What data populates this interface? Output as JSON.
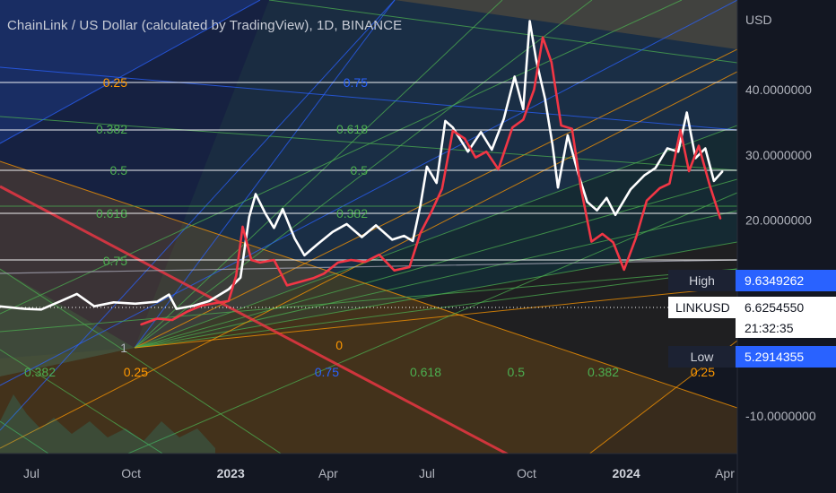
{
  "header": {
    "title": "ChainLink / US Dollar (calculated by TradingView), 1D, BINANCE"
  },
  "price_axis": {
    "unit_label": "USD",
    "ticks": [
      {
        "value": 40,
        "label": "40.0000000"
      },
      {
        "value": 30,
        "label": "30.0000000"
      },
      {
        "value": 20,
        "label": "20.0000000"
      },
      {
        "value": -10,
        "label": "-10.0000000"
      }
    ]
  },
  "time_axis": {
    "ticks": [
      {
        "date": "2022-07-01",
        "label": "Jul",
        "bold": false
      },
      {
        "date": "2022-10-01",
        "label": "Oct",
        "bold": false
      },
      {
        "date": "2023-01-01",
        "label": "2023",
        "bold": true
      },
      {
        "date": "2023-04-01",
        "label": "Apr",
        "bold": false
      },
      {
        "date": "2023-07-01",
        "label": "Jul",
        "bold": false
      },
      {
        "date": "2023-10-01",
        "label": "Oct",
        "bold": false
      },
      {
        "date": "2024-01-01",
        "label": "2024",
        "bold": true
      },
      {
        "date": "2024-04-01",
        "label": "Apr",
        "bold": false
      }
    ]
  },
  "fib_levels": {
    "left": [
      "0.25",
      "0.382",
      "0.5",
      "0.618",
      "0.75",
      "1"
    ],
    "middle": [
      "0.75",
      "0.618",
      "0.5",
      "0.382"
    ],
    "bottom": [
      "0.382",
      "0.25",
      "0.75",
      "0.618",
      "0.5",
      "0.382",
      "0.25"
    ],
    "zero": "0"
  },
  "readouts": {
    "high": {
      "label": "High",
      "value": "9.6349262"
    },
    "symbol": {
      "label": "LINKUSD",
      "value": "6.6254550",
      "countdown": "21:32:35"
    },
    "low": {
      "label": "Low",
      "value": "5.2914355"
    }
  },
  "colors": {
    "background": "#131722",
    "white_series": "#ffffff",
    "red_series": "#f23645",
    "high_low_badge": "#2962ff",
    "symbol_badge": "#ffffff",
    "fan_orange": "#ff9800",
    "fan_green": "#4caf50",
    "fan_blue": "#2962ff"
  },
  "chart_data": {
    "type": "line",
    "title": "ChainLink / US Dollar (calculated by TradingView), 1D, BINANCE",
    "xlabel": "",
    "ylabel": "USD",
    "ylim": [
      -14,
      51
    ],
    "grid": false,
    "series": [
      {
        "name": "",
        "color": "#ffffff",
        "points": [
          [
            "2022-06-01",
            6.8
          ],
          [
            "2022-06-25",
            6.4
          ],
          [
            "2022-07-10",
            6.3
          ],
          [
            "2022-07-28",
            7.6
          ],
          [
            "2022-08-12",
            8.7
          ],
          [
            "2022-08-28",
            6.8
          ],
          [
            "2022-09-15",
            7.4
          ],
          [
            "2022-10-05",
            7.2
          ],
          [
            "2022-10-25",
            7.5
          ],
          [
            "2022-11-05",
            8.6
          ],
          [
            "2022-11-12",
            6.4
          ],
          [
            "2022-11-28",
            6.9
          ],
          [
            "2022-12-12",
            7.6
          ],
          [
            "2022-12-30",
            9.4
          ],
          [
            "2023-01-10",
            11.2
          ],
          [
            "2023-01-18",
            20.5
          ],
          [
            "2023-01-24",
            24.0
          ],
          [
            "2023-02-02",
            21.0
          ],
          [
            "2023-02-10",
            18.8
          ],
          [
            "2023-02-18",
            21.7
          ],
          [
            "2023-03-01",
            17.2
          ],
          [
            "2023-03-10",
            14.6
          ],
          [
            "2023-03-22",
            16.3
          ],
          [
            "2023-04-05",
            18.2
          ],
          [
            "2023-04-18",
            19.4
          ],
          [
            "2023-05-02",
            17.4
          ],
          [
            "2023-05-15",
            19.2
          ],
          [
            "2023-05-30",
            17.0
          ],
          [
            "2023-06-10",
            17.6
          ],
          [
            "2023-06-18",
            16.8
          ],
          [
            "2023-06-25",
            22.2
          ],
          [
            "2023-07-01",
            28.2
          ],
          [
            "2023-07-10",
            25.7
          ],
          [
            "2023-07-18",
            35.2
          ],
          [
            "2023-07-25",
            34.2
          ],
          [
            "2023-08-08",
            30.5
          ],
          [
            "2023-08-20",
            33.5
          ],
          [
            "2023-08-30",
            30.8
          ],
          [
            "2023-09-10",
            35.5
          ],
          [
            "2023-09-20",
            42.0
          ],
          [
            "2023-09-28",
            37.0
          ],
          [
            "2023-10-04",
            50.5
          ],
          [
            "2023-10-10",
            44.5
          ],
          [
            "2023-10-18",
            38.7
          ],
          [
            "2023-10-25",
            31.5
          ],
          [
            "2023-10-30",
            25.0
          ],
          [
            "2023-11-08",
            33.0
          ],
          [
            "2023-11-18",
            27.0
          ],
          [
            "2023-11-26",
            22.8
          ],
          [
            "2023-12-05",
            21.5
          ],
          [
            "2023-12-14",
            23.4
          ],
          [
            "2023-12-22",
            20.8
          ],
          [
            "2024-01-05",
            24.7
          ],
          [
            "2024-01-18",
            26.9
          ],
          [
            "2024-01-28",
            28.0
          ],
          [
            "2024-02-08",
            31.0
          ],
          [
            "2024-02-18",
            30.5
          ],
          [
            "2024-02-26",
            36.5
          ],
          [
            "2024-03-05",
            29.5
          ],
          [
            "2024-03-14",
            31.0
          ],
          [
            "2024-03-22",
            26.0
          ],
          [
            "2024-03-30",
            27.5
          ]
        ]
      },
      {
        "name": "",
        "color": "#f23645",
        "points": [
          [
            "2022-10-10",
            4.0
          ],
          [
            "2022-10-25",
            4.9
          ],
          [
            "2022-11-08",
            4.7
          ],
          [
            "2022-11-22",
            6.0
          ],
          [
            "2022-12-05",
            6.9
          ],
          [
            "2022-12-18",
            7.3
          ],
          [
            "2022-12-30",
            7.6
          ],
          [
            "2023-01-06",
            11.5
          ],
          [
            "2023-01-12",
            19.0
          ],
          [
            "2023-01-20",
            13.9
          ],
          [
            "2023-01-28",
            13.5
          ],
          [
            "2023-02-10",
            13.9
          ],
          [
            "2023-02-22",
            10.0
          ],
          [
            "2023-03-05",
            10.5
          ],
          [
            "2023-03-18",
            11.1
          ],
          [
            "2023-03-28",
            11.8
          ],
          [
            "2023-04-10",
            13.5
          ],
          [
            "2023-04-22",
            13.9
          ],
          [
            "2023-05-05",
            13.6
          ],
          [
            "2023-05-18",
            14.7
          ],
          [
            "2023-06-01",
            12.3
          ],
          [
            "2023-06-15",
            12.8
          ],
          [
            "2023-06-25",
            18.0
          ],
          [
            "2023-07-05",
            21.2
          ],
          [
            "2023-07-15",
            24.8
          ],
          [
            "2023-07-25",
            33.7
          ],
          [
            "2023-08-05",
            32.5
          ],
          [
            "2023-08-15",
            29.6
          ],
          [
            "2023-08-25",
            30.5
          ],
          [
            "2023-09-05",
            27.8
          ],
          [
            "2023-09-18",
            34.2
          ],
          [
            "2023-09-28",
            35.4
          ],
          [
            "2023-10-08",
            40.0
          ],
          [
            "2023-10-16",
            48.0
          ],
          [
            "2023-10-24",
            44.2
          ],
          [
            "2023-11-02",
            34.5
          ],
          [
            "2023-11-12",
            34.0
          ],
          [
            "2023-11-20",
            25.1
          ],
          [
            "2023-11-30",
            16.7
          ],
          [
            "2023-12-10",
            17.9
          ],
          [
            "2023-12-20",
            16.6
          ],
          [
            "2023-12-30",
            12.4
          ],
          [
            "2024-01-10",
            17.3
          ],
          [
            "2024-01-20",
            23.0
          ],
          [
            "2024-02-01",
            24.9
          ],
          [
            "2024-02-10",
            25.6
          ],
          [
            "2024-02-20",
            33.8
          ],
          [
            "2024-02-28",
            27.5
          ],
          [
            "2024-03-08",
            31.4
          ],
          [
            "2024-03-18",
            25.4
          ],
          [
            "2024-03-28",
            20.2
          ]
        ]
      }
    ]
  }
}
